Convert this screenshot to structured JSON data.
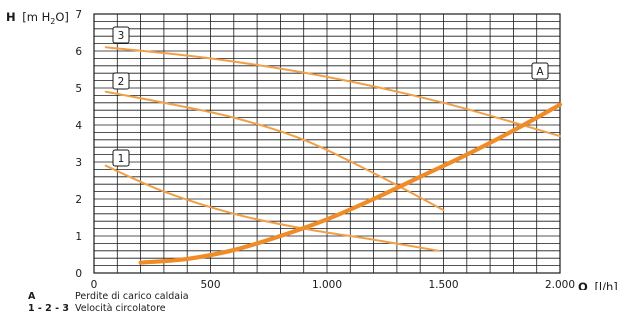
{
  "chart_data": {
    "type": "line",
    "title": "",
    "ylabel_bold": "H",
    "ylabel_rest": "[m H",
    "ylabel_sub": "2",
    "ylabel_end": "O]",
    "xlabel_bold": "Q",
    "xlabel_rest": "[l/h]",
    "xlim": [
      0,
      2000
    ],
    "ylim": [
      0,
      7
    ],
    "grid": true,
    "x_ticks": [
      0,
      500,
      1000,
      1500,
      2000
    ],
    "x_tick_labels": [
      "0",
      "500",
      "1.000",
      "1.500",
      "2.000"
    ],
    "y_ticks": [
      0,
      1,
      2,
      3,
      4,
      5,
      6,
      7
    ],
    "y_tick_labels": [
      "0",
      "1",
      "2",
      "3",
      "4",
      "5",
      "6",
      "7"
    ],
    "series": [
      {
        "name": "1",
        "color": "#f0a048",
        "x": [
          50,
          300,
          600,
          900,
          1200,
          1480
        ],
        "y": [
          2.9,
          2.2,
          1.6,
          1.2,
          0.9,
          0.6
        ]
      },
      {
        "name": "2",
        "color": "#f0a048",
        "x": [
          50,
          300,
          600,
          900,
          1200,
          1500
        ],
        "y": [
          4.9,
          4.6,
          4.2,
          3.6,
          2.7,
          1.7
        ]
      },
      {
        "name": "3",
        "color": "#f0a048",
        "x": [
          50,
          500,
          1000,
          1500,
          2000
        ],
        "y": [
          6.1,
          5.8,
          5.3,
          4.6,
          3.7
        ]
      },
      {
        "name": "A",
        "color": "#f08c28",
        "x": [
          200,
          400,
          600,
          800,
          1000,
          1200,
          1400,
          1600,
          1800,
          2000
        ],
        "y": [
          0.28,
          0.38,
          0.62,
          1.0,
          1.45,
          2.0,
          2.6,
          3.2,
          3.85,
          4.55
        ]
      }
    ],
    "legend": [
      {
        "key": "A",
        "text": "Perdite di carico caldaia"
      },
      {
        "key": "1 - 2 - 3",
        "text": "Velocità circolatore"
      }
    ]
  }
}
